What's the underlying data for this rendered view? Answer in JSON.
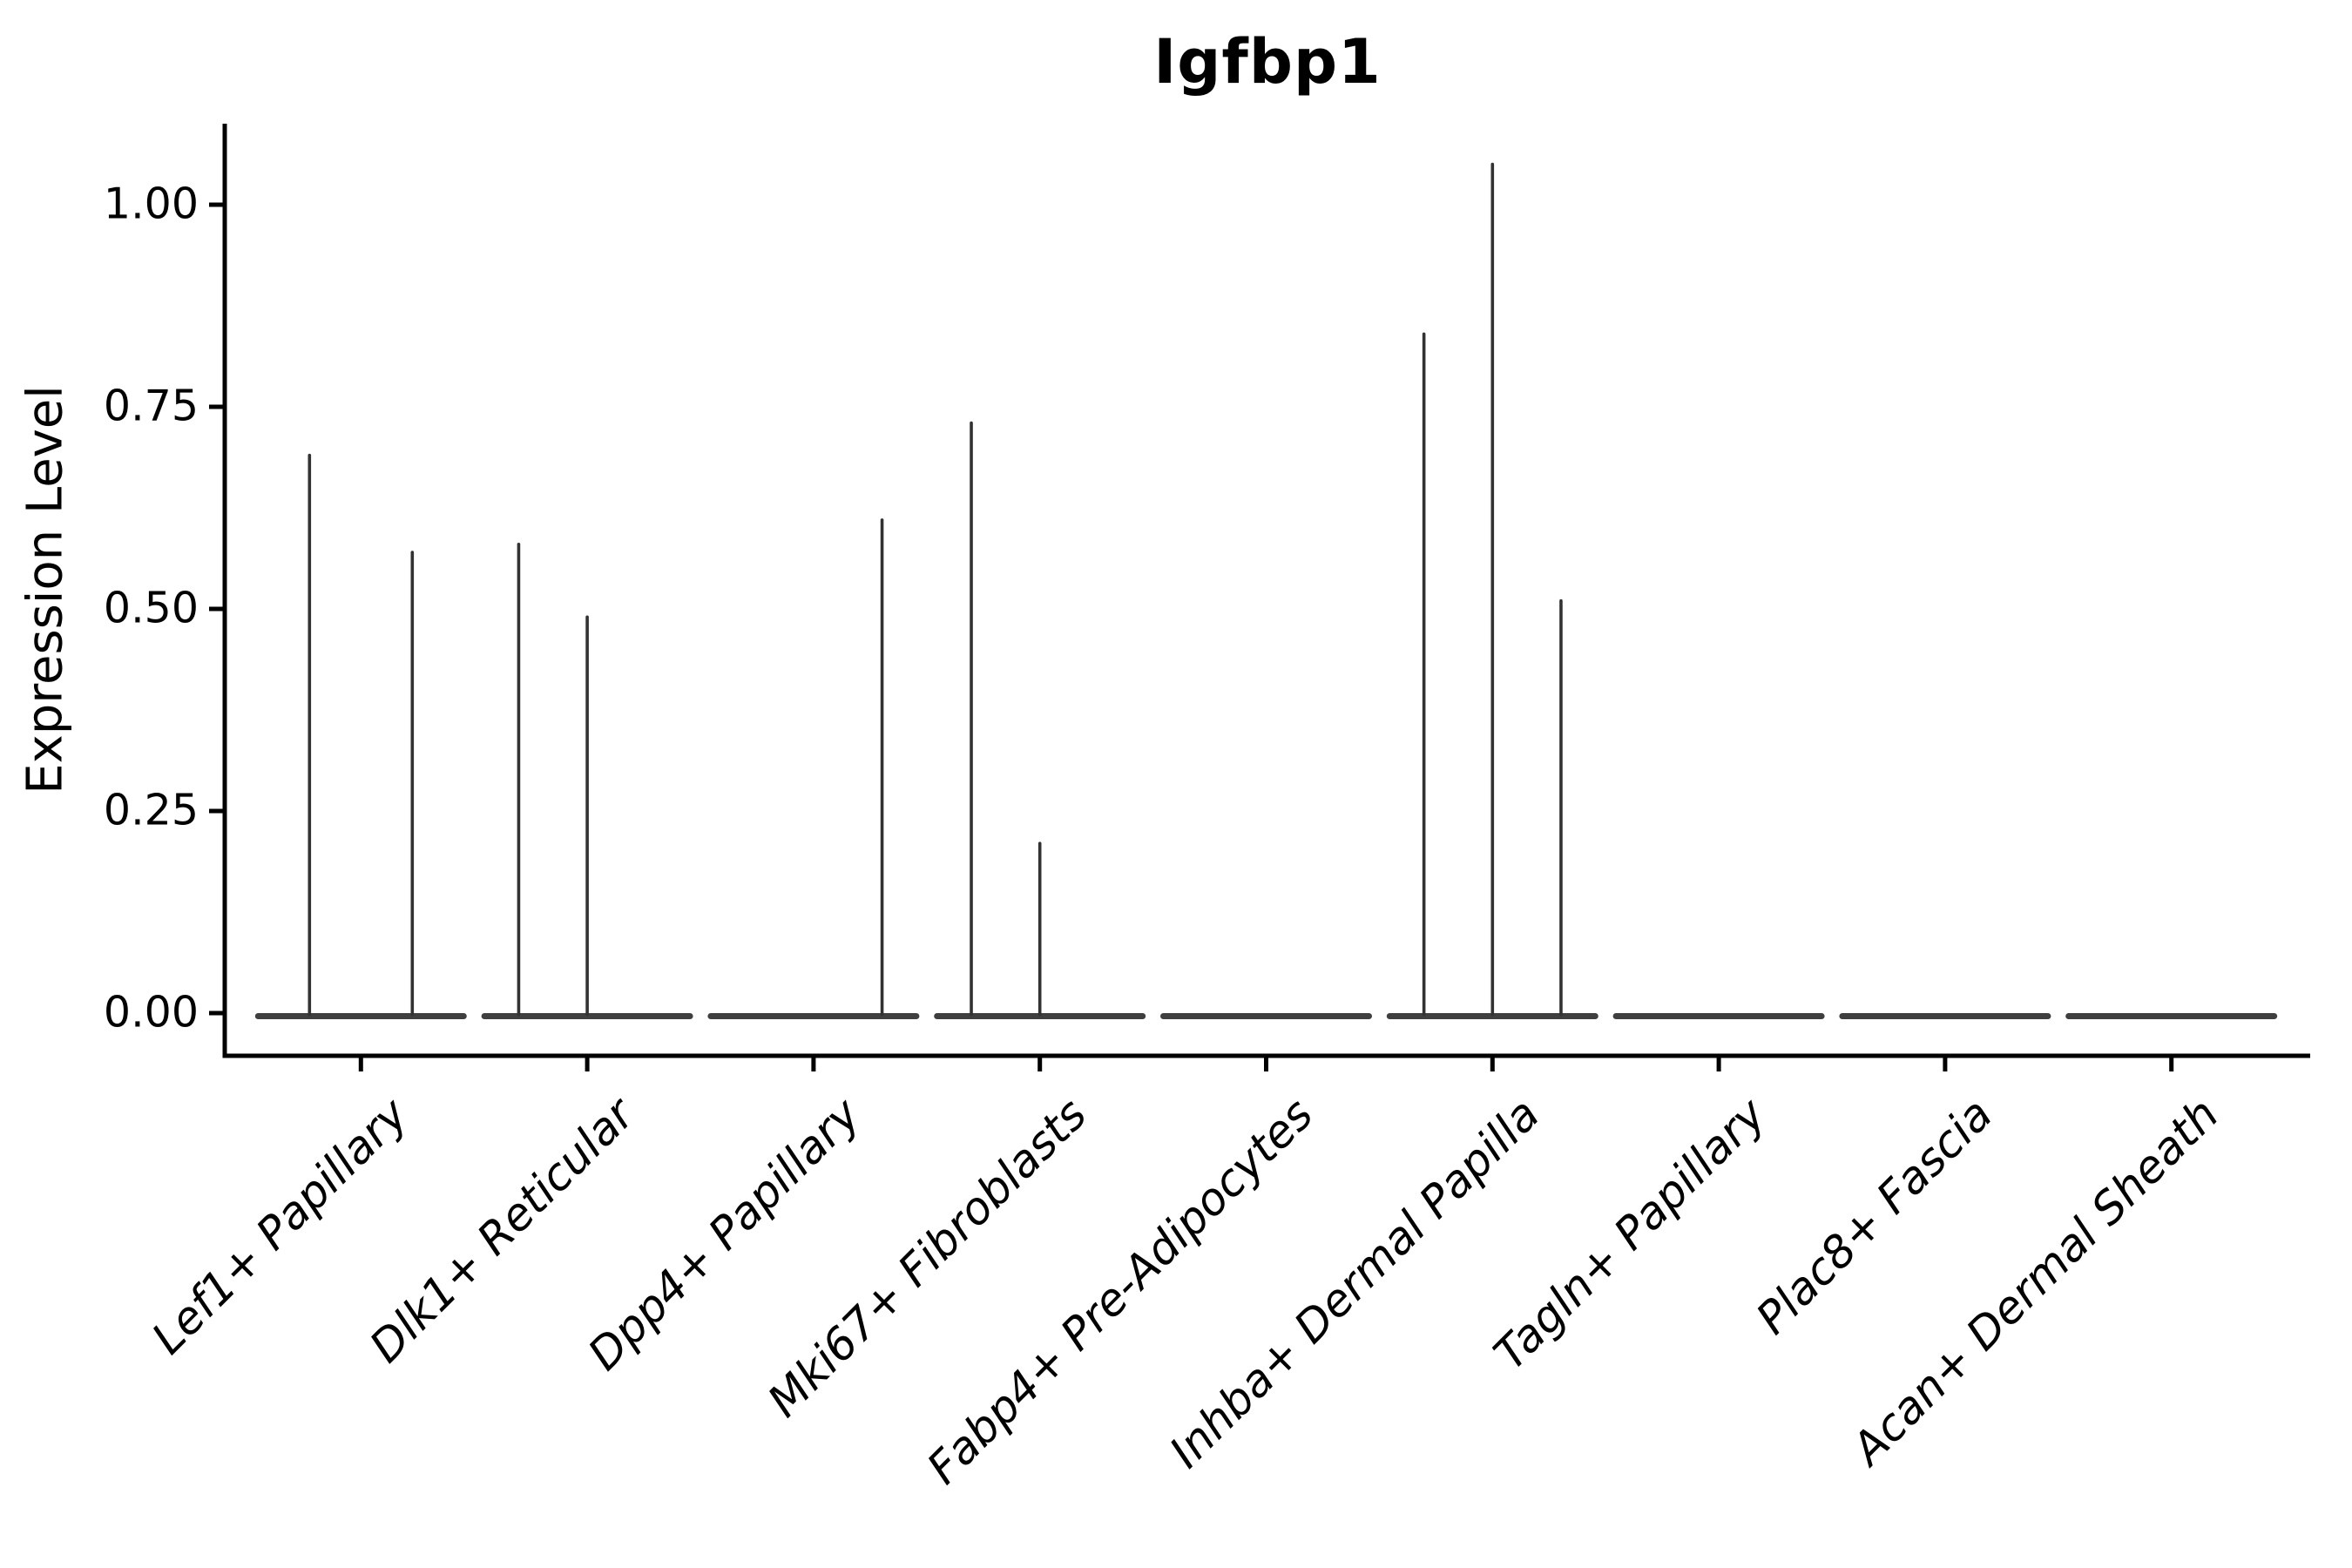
{
  "chart_data": {
    "type": "violin",
    "title": "Igfbp1",
    "xlabel": "",
    "ylabel": "Expression Level",
    "ylim": [
      -0.055,
      1.1
    ],
    "grid": false,
    "legend": null,
    "ytick_values": [
      0.0,
      0.25,
      0.5,
      0.75,
      1.0
    ],
    "ytick_labels": [
      "0.00",
      "0.25",
      "0.50",
      "0.75",
      "1.00"
    ],
    "categories": [
      "Lef1+ Papillary",
      "Dlk1+ Reticular",
      "Dpp4+ Papillary",
      "Mki67+ Fibroblasts",
      "Fabp4+ Pre-Adipocytes",
      "Inhba+ Dermal Papilla",
      "Tagln+ Papillary",
      "Plac8+ Fascia",
      "Acan+ Dermal Sheath"
    ],
    "violins": [
      {
        "category": "Lef1+ Papillary",
        "max_values": [
          0.69,
          0.57
        ]
      },
      {
        "category": "Dlk1+ Reticular",
        "max_values": [
          0.58,
          0.49,
          0
        ]
      },
      {
        "category": "Dpp4+ Papillary",
        "max_values": [
          0,
          0,
          0.61
        ]
      },
      {
        "category": "Mki67+ Fibroblasts",
        "max_values": [
          0.73,
          0.21,
          0
        ]
      },
      {
        "category": "Fabp4+ Pre-Adipocytes",
        "max_values": [
          0,
          0,
          0
        ]
      },
      {
        "category": "Inhba+ Dermal Papilla",
        "max_values": [
          0.84,
          1.05,
          0.51
        ]
      },
      {
        "category": "Tagln+ Papillary",
        "max_values": [
          0,
          0,
          0
        ]
      },
      {
        "category": "Plac8+ Fascia",
        "max_values": [
          0,
          0,
          0
        ]
      },
      {
        "category": "Acan+ Dermal Sheath",
        "max_values": [
          0,
          0,
          0
        ]
      }
    ],
    "violin_note": "mostly-zero expression: each violin renders as a flat bar at 0 with a thin spike up to its max value",
    "colors": {
      "violin_stroke": "#323232",
      "baseline_stroke": "#3f3f3f",
      "axis": "#000000",
      "text": "#000000",
      "background": "#ffffff"
    }
  }
}
